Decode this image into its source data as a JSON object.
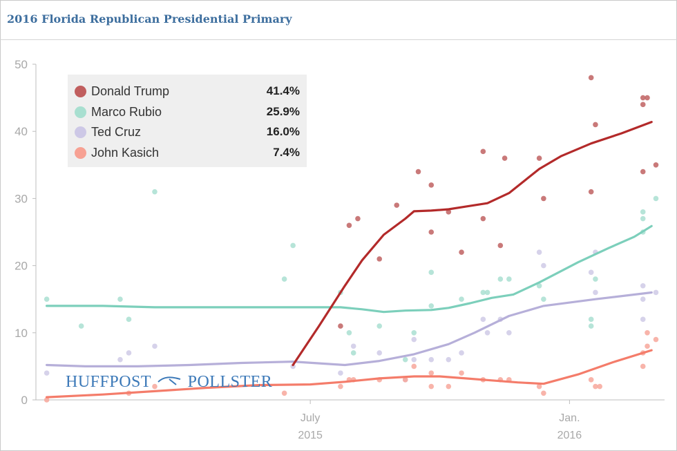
{
  "title": "2016 Florida Republican Presidential Primary",
  "watermark": {
    "left": "HUFFPOST",
    "right": "POLLSTER"
  },
  "legend": [
    {
      "name": "Donald Trump",
      "value": "41.4%",
      "color": "#b32a2a"
    },
    {
      "name": "Marco Rubio",
      "value": "25.9%",
      "color": "#80d1bd"
    },
    {
      "name": "Ted Cruz",
      "value": "16.0%",
      "color": "#b8b1d9"
    },
    {
      "name": "John Kasich",
      "value": "7.4%",
      "color": "#f47c6a"
    }
  ],
  "chart_data": {
    "type": "line",
    "title": "2016 Florida Republican Presidential Primary",
    "xlabel": "",
    "ylabel": "",
    "ylim": [
      0,
      50
    ],
    "yticks": [
      0,
      10,
      20,
      30,
      40,
      50
    ],
    "x_unit": "months since 2015-01-01",
    "xlim": [
      -0.35,
      14.2
    ],
    "xticks": [
      {
        "x": 6,
        "label": [
          "July",
          "2015"
        ]
      },
      {
        "x": 12,
        "label": [
          "Jan.",
          "2016"
        ]
      }
    ],
    "grid": false,
    "series": [
      {
        "name": "Donald Trump",
        "color": "#b32a2a",
        "dot_color": "#c06262",
        "trend": [
          [
            5.6,
            5.2
          ],
          [
            6.2,
            11
          ],
          [
            6.8,
            17
          ],
          [
            7.2,
            20.8
          ],
          [
            7.7,
            24.6
          ],
          [
            8.2,
            27
          ],
          [
            8.4,
            28.1
          ],
          [
            8.8,
            28.2
          ],
          [
            9.2,
            28.4
          ],
          [
            9.6,
            28.8
          ],
          [
            10.1,
            29.3
          ],
          [
            10.6,
            30.8
          ],
          [
            11.3,
            34.4
          ],
          [
            11.8,
            36.3
          ],
          [
            12.5,
            38.2
          ],
          [
            13.2,
            39.7
          ],
          [
            13.9,
            41.4
          ]
        ],
        "polls": [
          [
            6.7,
            11
          ],
          [
            6.9,
            26
          ],
          [
            7.1,
            27
          ],
          [
            7.6,
            21
          ],
          [
            8.0,
            29
          ],
          [
            8.5,
            34
          ],
          [
            8.8,
            32
          ],
          [
            8.8,
            25
          ],
          [
            9.2,
            28
          ],
          [
            9.5,
            22
          ],
          [
            10.0,
            27
          ],
          [
            10.0,
            37
          ],
          [
            10.4,
            23
          ],
          [
            10.5,
            36
          ],
          [
            11.3,
            36
          ],
          [
            11.4,
            30
          ],
          [
            12.5,
            48
          ],
          [
            12.6,
            41
          ],
          [
            12.5,
            31
          ],
          [
            13.7,
            45
          ],
          [
            13.8,
            45
          ],
          [
            13.7,
            44
          ],
          [
            13.7,
            34
          ],
          [
            14.0,
            35
          ]
        ]
      },
      {
        "name": "Marco Rubio",
        "color": "#7ccfbb",
        "dot_color": "#a9dfd1",
        "trend": [
          [
            -0.1,
            14
          ],
          [
            1.2,
            14
          ],
          [
            2.4,
            13.8
          ],
          [
            3.6,
            13.8
          ],
          [
            4.8,
            13.8
          ],
          [
            5.6,
            13.8
          ],
          [
            6.7,
            13.8
          ],
          [
            7.2,
            13.5
          ],
          [
            7.7,
            13.1
          ],
          [
            8.2,
            13.3
          ],
          [
            8.8,
            13.4
          ],
          [
            9.2,
            13.7
          ],
          [
            9.7,
            14.4
          ],
          [
            10.2,
            15.2
          ],
          [
            10.7,
            15.7
          ],
          [
            11.3,
            17.5
          ],
          [
            12.2,
            20.5
          ],
          [
            12.9,
            22.6
          ],
          [
            13.5,
            24.3
          ],
          [
            13.9,
            25.9
          ]
        ],
        "polls": [
          [
            -0.1,
            15
          ],
          [
            0.7,
            11
          ],
          [
            1.6,
            15
          ],
          [
            1.8,
            12
          ],
          [
            2.4,
            31
          ],
          [
            5.4,
            18
          ],
          [
            5.6,
            23
          ],
          [
            6.7,
            16
          ],
          [
            6.9,
            10
          ],
          [
            7.0,
            7
          ],
          [
            7.6,
            11
          ],
          [
            8.2,
            6
          ],
          [
            8.4,
            10
          ],
          [
            8.8,
            19
          ],
          [
            8.8,
            14
          ],
          [
            9.5,
            15
          ],
          [
            10.0,
            16
          ],
          [
            10.1,
            16
          ],
          [
            10.4,
            18
          ],
          [
            10.6,
            18
          ],
          [
            11.3,
            17
          ],
          [
            11.4,
            15
          ],
          [
            12.5,
            12
          ],
          [
            12.5,
            11
          ],
          [
            12.6,
            18
          ],
          [
            13.7,
            28
          ],
          [
            13.7,
            27
          ],
          [
            13.7,
            25
          ],
          [
            14.0,
            30
          ]
        ]
      },
      {
        "name": "Ted Cruz",
        "color": "#b6afd9",
        "dot_color": "#cfcae6",
        "trend": [
          [
            -0.1,
            5.2
          ],
          [
            0.8,
            5
          ],
          [
            2.0,
            5
          ],
          [
            3.2,
            5.2
          ],
          [
            4.4,
            5.5
          ],
          [
            5.6,
            5.7
          ],
          [
            6.8,
            5.2
          ],
          [
            7.6,
            5.8
          ],
          [
            8.4,
            6.8
          ],
          [
            9.2,
            8.3
          ],
          [
            9.8,
            10
          ],
          [
            10.6,
            12.5
          ],
          [
            11.4,
            14
          ],
          [
            12.6,
            15
          ],
          [
            13.9,
            16
          ]
        ],
        "polls": [
          [
            -0.1,
            4
          ],
          [
            1.6,
            6
          ],
          [
            1.8,
            7
          ],
          [
            2.4,
            8
          ],
          [
            5.6,
            5
          ],
          [
            6.7,
            4
          ],
          [
            7.0,
            8
          ],
          [
            7.6,
            7
          ],
          [
            8.2,
            3
          ],
          [
            8.4,
            6
          ],
          [
            8.4,
            9
          ],
          [
            8.8,
            6
          ],
          [
            9.2,
            6
          ],
          [
            9.5,
            7
          ],
          [
            10.0,
            12
          ],
          [
            10.1,
            10
          ],
          [
            10.4,
            12
          ],
          [
            10.6,
            10
          ],
          [
            11.3,
            22
          ],
          [
            11.4,
            20
          ],
          [
            12.5,
            19
          ],
          [
            12.6,
            22
          ],
          [
            12.6,
            16
          ],
          [
            13.7,
            17
          ],
          [
            13.7,
            15
          ],
          [
            13.7,
            12
          ],
          [
            14.0,
            16
          ]
        ]
      },
      {
        "name": "John Kasich",
        "color": "#f47c6a",
        "dot_color": "#f7a79b",
        "trend": [
          [
            -0.1,
            0.4
          ],
          [
            1.2,
            0.8
          ],
          [
            2.4,
            1.3
          ],
          [
            3.6,
            1.8
          ],
          [
            4.8,
            2.2
          ],
          [
            6.0,
            2.3
          ],
          [
            6.8,
            2.7
          ],
          [
            7.6,
            3.2
          ],
          [
            8.4,
            3.5
          ],
          [
            9.0,
            3.5
          ],
          [
            9.6,
            3.2
          ],
          [
            10.2,
            2.9
          ],
          [
            10.8,
            2.6
          ],
          [
            11.4,
            2.4
          ],
          [
            12.2,
            3.8
          ],
          [
            13.0,
            5.6
          ],
          [
            13.9,
            7.4
          ]
        ],
        "polls": [
          [
            -0.1,
            0
          ],
          [
            1.8,
            1
          ],
          [
            2.4,
            2
          ],
          [
            5.4,
            1
          ],
          [
            6.7,
            2
          ],
          [
            6.9,
            3
          ],
          [
            7.0,
            3
          ],
          [
            7.6,
            3
          ],
          [
            8.2,
            3
          ],
          [
            8.4,
            5
          ],
          [
            8.8,
            4
          ],
          [
            8.8,
            2
          ],
          [
            9.2,
            2
          ],
          [
            9.5,
            4
          ],
          [
            10.0,
            3
          ],
          [
            10.4,
            3
          ],
          [
            10.6,
            3
          ],
          [
            11.3,
            2
          ],
          [
            11.4,
            1
          ],
          [
            12.5,
            3
          ],
          [
            12.6,
            2
          ],
          [
            12.7,
            2
          ],
          [
            13.7,
            5
          ],
          [
            13.7,
            7
          ],
          [
            13.8,
            8
          ],
          [
            13.8,
            10
          ],
          [
            14.0,
            9
          ]
        ]
      }
    ]
  }
}
